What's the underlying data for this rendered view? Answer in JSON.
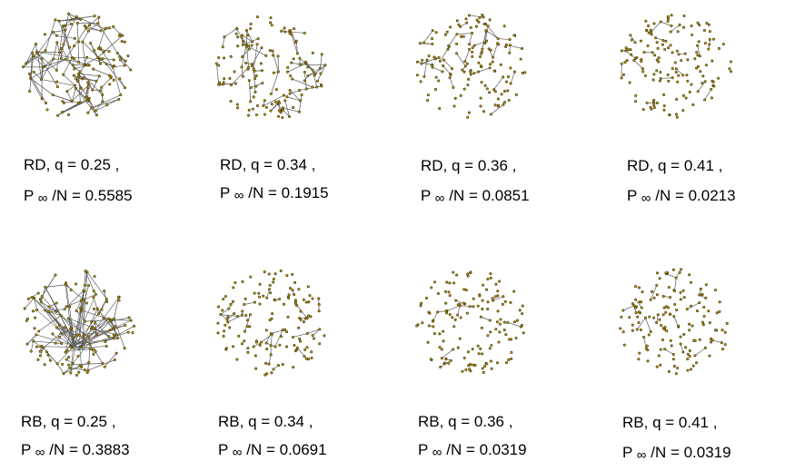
{
  "panels": [
    {
      "attack": "RD",
      "q": "0.25",
      "p": "0.5585"
    },
    {
      "attack": "RD",
      "q": "0.34",
      "p": "0.1915"
    },
    {
      "attack": "RD",
      "q": "0.36",
      "p": "0.0851"
    },
    {
      "attack": "RD",
      "q": "0.41",
      "p": "0.0213"
    },
    {
      "attack": "RB",
      "q": "0.25",
      "p": "0.3883"
    },
    {
      "attack": "RB",
      "q": "0.34",
      "p": "0.0691"
    },
    {
      "attack": "RB",
      "q": "0.36",
      "p": "0.0319"
    },
    {
      "attack": "RB",
      "q": "0.41",
      "p": "0.0319"
    }
  ],
  "labels": {
    "q_prefix": ", q = ",
    "q_suffix": " ,",
    "p_symbol": "P",
    "inf_symbol": "∞",
    "p_suffix": "/N = "
  },
  "colors": {
    "node": "#3a3000",
    "node_fill": "#c8a000",
    "edge": "#5a5a5a"
  }
}
